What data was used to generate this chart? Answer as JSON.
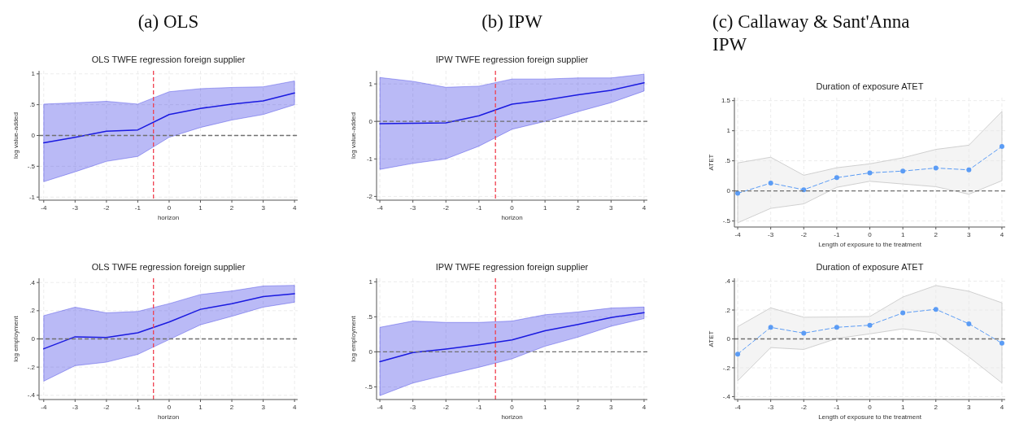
{
  "chart_data": [
    {
      "type": "line",
      "subtitle": "(a) OLS",
      "title": "OLS TWFE regression foreign supplier",
      "xlabel": "horizon",
      "ylabel": "log value-added",
      "x": [
        -4,
        -3,
        -2,
        -1,
        0,
        1,
        2,
        3,
        4
      ],
      "xlim": [
        -4.15,
        4.1
      ],
      "xticks": [
        -4,
        -3,
        -2,
        -1,
        0,
        1,
        2,
        3,
        4
      ],
      "ylim": [
        -1.05,
        1.05
      ],
      "yticks": [
        {
          "value": -1,
          "label": "-1"
        },
        {
          "value": -0.5,
          "label": "-.5"
        },
        0,
        {
          "value": 0.5,
          "label": ".5"
        },
        1
      ],
      "grid": true,
      "marker": "none",
      "line_style": "solid",
      "ref_lines": [
        {
          "axis": "y",
          "value": 0,
          "color": "#707070",
          "line_style": "dashed"
        },
        {
          "axis": "x",
          "value": -0.5,
          "color": "#f04050",
          "line_style": "dashed"
        }
      ],
      "series": [
        {
          "color": "#1a1ae0",
          "values": [
            -0.12,
            -0.03,
            0.07,
            0.09,
            0.34,
            0.44,
            0.51,
            0.56,
            0.69
          ],
          "lower": [
            -0.75,
            -0.59,
            -0.42,
            -0.34,
            -0.03,
            0.13,
            0.25,
            0.34,
            0.5
          ],
          "upper": [
            0.51,
            0.53,
            0.555,
            0.51,
            0.71,
            0.76,
            0.78,
            0.79,
            0.885
          ]
        }
      ]
    },
    {
      "type": "line",
      "subtitle": "(b) IPW",
      "title": "IPW TWFE regression foreign supplier",
      "xlabel": "horizon",
      "ylabel": "log value-added",
      "x": [
        -4,
        -3,
        -2,
        -1,
        0,
        1,
        2,
        3,
        4
      ],
      "xlim": [
        -4.1,
        4.1
      ],
      "xticks": [
        -4,
        -3,
        -2,
        -1,
        0,
        1,
        2,
        3,
        4
      ],
      "ylim": [
        -2.1,
        1.35
      ],
      "yticks": [
        -2,
        -1,
        0,
        1
      ],
      "grid": true,
      "marker": "none",
      "line_style": "solid",
      "ref_lines": [
        {
          "axis": "y",
          "value": 0,
          "color": "#707070",
          "line_style": "dashed"
        },
        {
          "axis": "x",
          "value": -0.5,
          "color": "#f04050",
          "line_style": "dashed"
        }
      ],
      "series": [
        {
          "color": "#1a1ae0",
          "values": [
            -0.06,
            -0.05,
            -0.04,
            0.15,
            0.46,
            0.57,
            0.71,
            0.83,
            1.03
          ],
          "lower": [
            -1.28,
            -1.12,
            -1.0,
            -0.66,
            -0.21,
            0.0,
            0.26,
            0.5,
            0.81
          ],
          "upper": [
            1.17,
            1.07,
            0.91,
            0.94,
            1.13,
            1.13,
            1.16,
            1.16,
            1.26
          ]
        }
      ]
    },
    {
      "type": "line",
      "subtitle": "(c) Callaway & Sant'Anna IPW",
      "title": "Duration of exposure ATET",
      "xlabel": "Length of exposure to the treatment",
      "ylabel": "ATET",
      "x": [
        -4,
        -3,
        -2,
        -1,
        0,
        1,
        2,
        3,
        4
      ],
      "xlim": [
        -4.1,
        4.1
      ],
      "xticks": [
        -4,
        -3,
        -2,
        -1,
        0,
        1,
        2,
        3,
        4
      ],
      "ylim": [
        -0.6,
        1.55
      ],
      "yticks": [
        {
          "value": -0.5,
          "label": "-.5"
        },
        0,
        {
          "value": 0.5,
          "label": ".5"
        },
        1,
        1.5
      ],
      "grid": true,
      "marker": "circle",
      "line_style": "dashed",
      "ref_lines": [
        {
          "axis": "y",
          "value": 0,
          "color": "#707070",
          "line_style": "dashed"
        }
      ],
      "series": [
        {
          "color": "#5b9cf5",
          "values": [
            -0.04,
            0.13,
            0.02,
            0.22,
            0.3,
            0.33,
            0.38,
            0.35,
            0.74
          ],
          "lower": [
            -0.53,
            -0.29,
            -0.215,
            0.06,
            0.16,
            0.115,
            0.07,
            -0.055,
            0.17
          ],
          "upper": [
            0.465,
            0.56,
            0.26,
            0.385,
            0.45,
            0.55,
            0.69,
            0.76,
            1.32
          ]
        }
      ]
    },
    {
      "type": "line",
      "title": "OLS TWFE regression foreign supplier",
      "xlabel": "horizon",
      "ylabel": "log employment",
      "x": [
        -4,
        -3,
        -2,
        -1,
        0,
        1,
        2,
        3,
        4
      ],
      "xlim": [
        -4.15,
        4.1
      ],
      "xticks": [
        -4,
        -3,
        -2,
        -1,
        0,
        1,
        2,
        3,
        4
      ],
      "ylim": [
        -0.43,
        0.43
      ],
      "yticks": [
        {
          "value": -0.4,
          "label": "-.4"
        },
        {
          "value": -0.2,
          "label": "-.2"
        },
        0,
        {
          "value": 0.2,
          "label": ".2"
        },
        {
          "value": 0.4,
          "label": ".4"
        }
      ],
      "grid": true,
      "marker": "none",
      "line_style": "solid",
      "ref_lines": [
        {
          "axis": "y",
          "value": 0,
          "color": "#707070",
          "line_style": "dashed"
        },
        {
          "axis": "x",
          "value": -0.5,
          "color": "#f04050",
          "line_style": "dashed"
        }
      ],
      "series": [
        {
          "color": "#1a1ae0",
          "values": [
            -0.07,
            0.015,
            0.01,
            0.043,
            0.12,
            0.21,
            0.25,
            0.3,
            0.32
          ],
          "lower": [
            -0.3,
            -0.19,
            -0.165,
            -0.11,
            -0.005,
            0.1,
            0.16,
            0.225,
            0.26
          ],
          "upper": [
            0.165,
            0.225,
            0.185,
            0.195,
            0.25,
            0.315,
            0.34,
            0.375,
            0.38
          ]
        }
      ]
    },
    {
      "type": "line",
      "title": "IPW TWFE regression foreign supplier",
      "xlabel": "horizon",
      "ylabel": "log employment",
      "x": [
        -4,
        -3,
        -2,
        -1,
        0,
        1,
        2,
        3,
        4
      ],
      "xlim": [
        -4.1,
        4.1
      ],
      "xticks": [
        -4,
        -3,
        -2,
        -1,
        0,
        1,
        2,
        3,
        4
      ],
      "ylim": [
        -0.68,
        1.05
      ],
      "yticks": [
        {
          "value": -0.5,
          "label": "-.5"
        },
        0,
        {
          "value": 0.5,
          "label": ".5"
        },
        1
      ],
      "grid": true,
      "marker": "none",
      "line_style": "solid",
      "ref_lines": [
        {
          "axis": "y",
          "value": 0,
          "color": "#707070",
          "line_style": "dashed"
        },
        {
          "axis": "x",
          "value": -0.5,
          "color": "#f04050",
          "line_style": "dashed"
        }
      ],
      "series": [
        {
          "color": "#1a1ae0",
          "values": [
            -0.14,
            -0.01,
            0.04,
            0.1,
            0.17,
            0.3,
            0.39,
            0.49,
            0.56
          ],
          "lower": [
            -0.625,
            -0.445,
            -0.33,
            -0.22,
            -0.1,
            0.08,
            0.21,
            0.365,
            0.475
          ],
          "upper": [
            0.35,
            0.44,
            0.42,
            0.42,
            0.44,
            0.53,
            0.57,
            0.625,
            0.64
          ]
        }
      ]
    },
    {
      "type": "line",
      "title": "Duration of exposure ATET",
      "xlabel": "Length of exposure to the treatment",
      "ylabel": "ATET",
      "x": [
        -4,
        -3,
        -2,
        -1,
        0,
        1,
        2,
        3,
        4
      ],
      "xlim": [
        -4.1,
        4.1
      ],
      "xticks": [
        -4,
        -3,
        -2,
        -1,
        0,
        1,
        2,
        3,
        4
      ],
      "ylim": [
        -0.42,
        0.42
      ],
      "yticks": [
        {
          "value": -0.4,
          "label": "-.4"
        },
        {
          "value": -0.2,
          "label": "-.2"
        },
        0,
        {
          "value": 0.2,
          "label": ".2"
        },
        {
          "value": 0.4,
          "label": ".4"
        }
      ],
      "grid": true,
      "marker": "circle",
      "line_style": "dashed",
      "ref_lines": [
        {
          "axis": "y",
          "value": 0,
          "color": "#707070",
          "line_style": "dashed"
        }
      ],
      "series": [
        {
          "color": "#5b9cf5",
          "values": [
            -0.105,
            0.08,
            0.04,
            0.08,
            0.095,
            0.18,
            0.205,
            0.105,
            -0.03
          ],
          "lower": [
            -0.29,
            -0.06,
            -0.073,
            0.003,
            0.035,
            0.07,
            0.04,
            -0.125,
            -0.305
          ],
          "upper": [
            0.085,
            0.215,
            0.15,
            0.152,
            0.155,
            0.29,
            0.37,
            0.33,
            0.25
          ]
        }
      ]
    }
  ]
}
